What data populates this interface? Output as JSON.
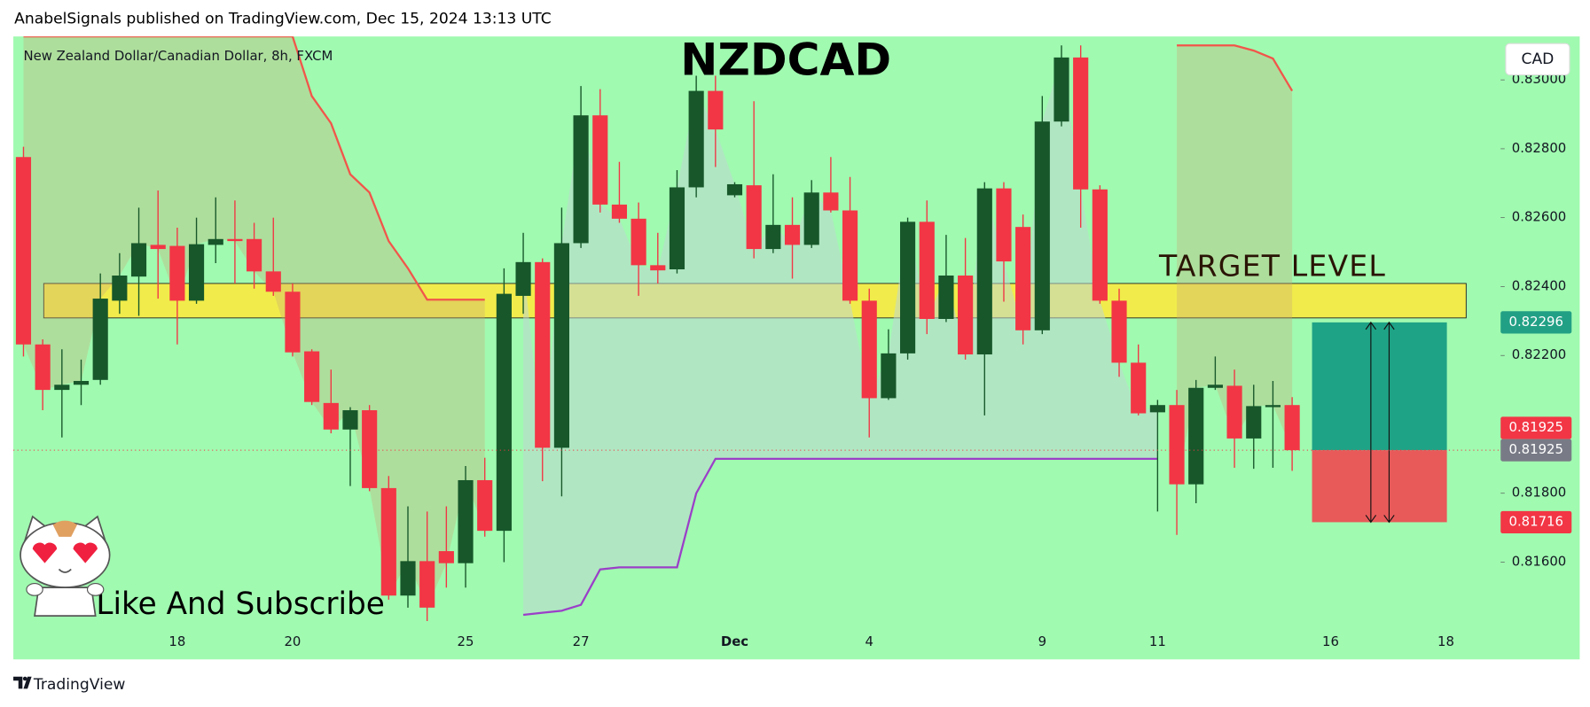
{
  "header": "AnabelSignals published on TradingView.com, Dec 15, 2024 13:13 UTC",
  "footer": "TradingView",
  "chart_data": {
    "type": "candlestick",
    "title": "NZDCAD",
    "subtitle": "New Zealand Dollar/Canadian Dollar, 8h, FXCM",
    "currency_label": "CAD",
    "annotations": [
      "TARGET LEVEL",
      "Like And Subscribe"
    ],
    "up_color": "#17572a",
    "down_color": "#f23645",
    "background": "#a0fab0",
    "categories": [
      null,
      null,
      null,
      null,
      null,
      null,
      null,
      null,
      "18",
      null,
      null,
      null,
      null,
      null,
      "20",
      null,
      null,
      null,
      null,
      null,
      null,
      null,
      null,
      "25",
      null,
      null,
      null,
      null,
      null,
      "27",
      null,
      null,
      null,
      null,
      null,
      null,
      null,
      "Dec",
      null,
      null,
      null,
      null,
      null,
      null,
      "4",
      null,
      null,
      null,
      null,
      null,
      null,
      null,
      null,
      "9",
      null,
      null,
      null,
      null,
      null,
      "11",
      null,
      null,
      null,
      null,
      null,
      null,
      null,
      null,
      "16",
      null,
      null,
      null,
      null,
      null,
      "18"
    ],
    "open": [
      0.82776,
      0.82232,
      0.821,
      0.82115,
      0.82129,
      0.82359,
      0.82429,
      0.82521,
      0.82518,
      0.82359,
      0.82521,
      0.82538,
      0.82538,
      0.82444,
      0.82385,
      0.82212,
      0.82062,
      0.81985,
      0.82041,
      0.81815,
      0.81503,
      0.81603,
      0.81632,
      0.81597,
      0.81838,
      0.81691,
      0.82373,
      0.82471,
      0.81932,
      0.82526,
      0.82897,
      0.82638,
      0.82597,
      0.82462,
      0.8245,
      0.82688,
      0.82968,
      0.82665,
      0.82694,
      0.82509,
      0.82579,
      0.82521,
      0.82673,
      0.82621,
      0.82359,
      0.82076,
      0.82206,
      0.82588,
      0.82306,
      0.82432,
      0.82203,
      0.82685,
      0.82573,
      0.82273,
      0.82879,
      0.83065,
      0.82682,
      0.82359,
      0.82179,
      0.82035,
      0.82056,
      0.81826,
      0.82106,
      0.82112,
      0.81959,
      0.8205,
      0.82056,
      null,
      null,
      null,
      null,
      null,
      null,
      null,
      null
    ],
    "high": [
      0.82806,
      0.82247,
      0.82218,
      0.82188,
      0.82438,
      0.82497,
      0.82629,
      0.82679,
      0.82571,
      0.826,
      0.82659,
      0.8265,
      0.82585,
      0.826,
      0.82409,
      0.82218,
      0.82159,
      0.8205,
      0.82056,
      0.8185,
      0.81762,
      0.81747,
      0.81762,
      0.81879,
      0.81903,
      0.82453,
      0.82556,
      0.82482,
      0.82629,
      0.82982,
      0.82973,
      0.82762,
      0.82644,
      0.82556,
      0.82738,
      0.83012,
      0.83012,
      0.82703,
      0.82938,
      0.82726,
      0.82659,
      0.82709,
      0.82776,
      0.82718,
      0.82394,
      0.82276,
      0.826,
      0.8265,
      0.8255,
      0.82541,
      0.82703,
      0.82703,
      0.82609,
      0.82953,
      0.831,
      0.831,
      0.82694,
      0.82394,
      0.82232,
      0.82071,
      0.821,
      0.82129,
      0.82197,
      0.82159,
      0.82115,
      0.82126,
      0.82079,
      null,
      null,
      null,
      null,
      null,
      null,
      null,
      null
    ],
    "low": [
      0.82197,
      0.82041,
      0.81962,
      0.82056,
      0.82115,
      0.82321,
      0.82315,
      0.82365,
      0.82232,
      0.8235,
      0.82468,
      0.82409,
      0.82394,
      0.82373,
      0.82197,
      0.82056,
      0.81974,
      0.81821,
      0.81806,
      0.81491,
      0.81468,
      0.81429,
      0.81526,
      0.81526,
      0.81674,
      0.816,
      0.82321,
      0.81835,
      0.81791,
      0.82512,
      0.82615,
      0.82585,
      0.82373,
      0.82409,
      0.82438,
      0.82659,
      0.82747,
      0.82659,
      0.82482,
      0.82497,
      0.82423,
      0.82512,
      0.82615,
      0.8235,
      0.81962,
      0.82071,
      0.82188,
      0.82262,
      0.82297,
      0.82188,
      0.82026,
      0.82356,
      0.82232,
      0.82262,
      0.82865,
      0.82571,
      0.8235,
      0.82138,
      0.82026,
      0.81747,
      0.81679,
      0.81771,
      0.821,
      0.81874,
      0.81871,
      0.81874,
      0.81865,
      null,
      null,
      null,
      null,
      null,
      null,
      null,
      null
    ],
    "close": [
      0.82232,
      0.821,
      0.82115,
      0.82126,
      0.82365,
      0.82432,
      0.82526,
      0.82509,
      0.82359,
      0.82523,
      0.82538,
      0.82532,
      0.82444,
      0.82385,
      0.82209,
      0.82065,
      0.81985,
      0.82041,
      0.81815,
      0.81503,
      0.81603,
      0.81468,
      0.81597,
      0.81838,
      0.81691,
      0.82379,
      0.82471,
      0.81932,
      0.82526,
      0.82897,
      0.82638,
      0.82597,
      0.82462,
      0.82447,
      0.82688,
      0.82968,
      0.82856,
      0.82697,
      0.82509,
      0.82579,
      0.82521,
      0.82673,
      0.82621,
      0.82359,
      0.82076,
      0.82206,
      0.82588,
      0.82306,
      0.82432,
      0.82203,
      0.82685,
      0.82473,
      0.82273,
      0.82879,
      0.83065,
      0.82682,
      0.82359,
      0.82179,
      0.82032,
      0.82056,
      0.81826,
      0.82106,
      0.82115,
      0.81959,
      0.82053,
      0.82056,
      0.81925,
      null,
      null,
      null,
      null,
      null,
      null,
      null,
      null
    ],
    "lines": [
      {
        "color": "#f2554a",
        "fill": "rgba(200,170,120,0.35)",
        "values": [
          0.83126,
          0.83126,
          0.83126,
          0.83126,
          0.83126,
          0.83126,
          0.83126,
          0.83126,
          0.83126,
          0.83126,
          0.83126,
          0.83126,
          0.83126,
          0.83126,
          0.83126,
          0.82953,
          0.82874,
          0.82726,
          0.82673,
          0.82532,
          0.82453,
          0.82362,
          0.82362,
          0.82362,
          0.82362,
          null,
          null,
          null,
          null,
          null,
          null,
          null,
          null,
          null,
          null,
          null,
          null,
          null,
          null,
          null,
          null,
          null,
          null,
          null,
          null,
          null,
          null,
          null,
          null,
          null,
          null,
          null,
          null,
          null,
          null,
          null,
          null,
          null,
          null,
          null,
          0.831,
          0.831,
          0.831,
          0.831,
          0.83085,
          0.83062,
          0.82968,
          null,
          null,
          null,
          null,
          null,
          null,
          null,
          null
        ]
      },
      {
        "color": "#9b3fc8",
        "fill": "rgba(190,215,210,0.55)",
        "values": [
          null,
          null,
          null,
          null,
          null,
          null,
          null,
          null,
          null,
          null,
          null,
          null,
          null,
          null,
          null,
          null,
          null,
          null,
          null,
          null,
          null,
          null,
          null,
          null,
          null,
          null,
          0.81447,
          0.81453,
          0.81459,
          0.81476,
          0.81579,
          0.81585,
          0.81585,
          0.81585,
          0.81585,
          0.818,
          0.819,
          0.819,
          0.819,
          0.819,
          0.819,
          0.819,
          0.819,
          0.819,
          0.819,
          0.819,
          0.819,
          0.819,
          0.819,
          0.819,
          0.819,
          0.819,
          0.819,
          0.819,
          0.819,
          0.819,
          0.819,
          0.819,
          0.819,
          0.819,
          null,
          null,
          null,
          null,
          null,
          null,
          null,
          null,
          null,
          null,
          null,
          null,
          null,
          null,
          null
        ]
      }
    ],
    "zone": {
      "ylim": [
        0.82309,
        0.82409
      ],
      "color": "#ffe93a"
    },
    "position": {
      "target": 0.82296,
      "entry": 0.81925,
      "stop": 0.81716,
      "profit_color": "#1fa386",
      "loss_color": "#e85a5a"
    },
    "last_price": 0.81925,
    "price_labels": [
      {
        "value": 0.82296,
        "label": "0.82296",
        "color": "#22a085"
      },
      {
        "value": 0.81925,
        "label": "0.81925",
        "color": "#f23645"
      },
      {
        "value": 0.81925,
        "label": "0.81925",
        "color": "#787b86"
      },
      {
        "value": 0.81716,
        "label": "0.81716",
        "color": "#f23645"
      }
    ],
    "ylim": [
      0.81403,
      0.83126
    ],
    "yticks": [
      {
        "value": 0.816,
        "label": "0.81600"
      },
      {
        "value": 0.818,
        "label": "0.81800"
      },
      {
        "value": 0.822,
        "label": "0.82200"
      },
      {
        "value": 0.824,
        "label": "0.82400"
      },
      {
        "value": 0.826,
        "label": "0.82600"
      },
      {
        "value": 0.828,
        "label": "0.82800"
      },
      {
        "value": 0.83,
        "label": "0.83000"
      }
    ],
    "grid": false
  }
}
